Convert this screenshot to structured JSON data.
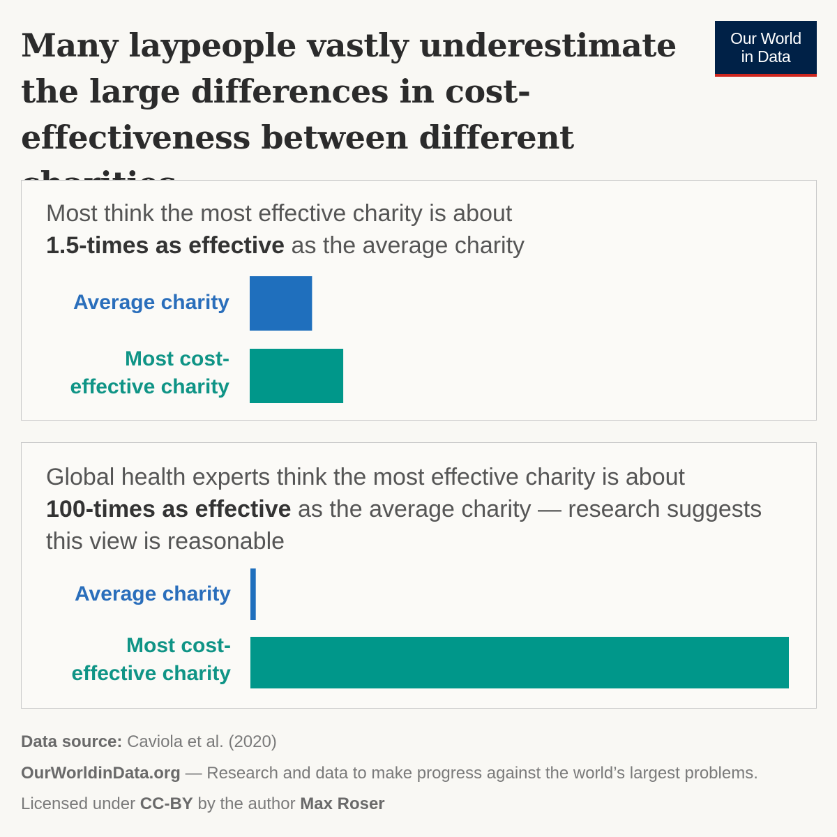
{
  "title": "Many laypeople vastly underestimate the large differences in cost-effectiveness between different charities",
  "logo": {
    "line1": "Our World",
    "line2": "in Data"
  },
  "colors": {
    "average": "#1f6fbd",
    "most_effective": "#00978a"
  },
  "chart_data": [
    {
      "type": "bar",
      "orientation": "horizontal",
      "text_pre": "Most think the most effective charity is about",
      "text_bold": "1.5-times as effective",
      "text_post": "as the average charity",
      "categories": [
        "Average charity",
        "Most cost-effective charity"
      ],
      "category_lines": [
        [
          "Average charity"
        ],
        [
          "Most cost-",
          "effective charity"
        ]
      ],
      "values": [
        1,
        1.5
      ],
      "xlim": [
        0,
        8.66
      ]
    },
    {
      "type": "bar",
      "orientation": "horizontal",
      "text_pre": "Global health experts think the most effective charity is about",
      "text_bold": "100-times as effective",
      "text_post": "as the average charity — research suggests this view is reasonable",
      "categories": [
        "Average charity",
        "Most cost-effective charity"
      ],
      "category_lines": [
        [
          "Average charity"
        ],
        [
          "Most cost-",
          "effective charity"
        ]
      ],
      "values": [
        1,
        100
      ],
      "xlim": [
        0,
        100
      ]
    }
  ],
  "footer": {
    "source_label": "Data source:",
    "source": "Caviola et al. (2020)",
    "site": "OurWorldinData.org",
    "site_desc": "— Research and data to make progress against the world’s largest problems.",
    "license_pre": "Licensed under",
    "license": "CC-BY",
    "license_mid": "by the author",
    "author": "Max Roser"
  }
}
